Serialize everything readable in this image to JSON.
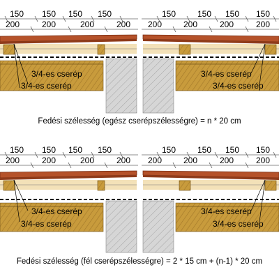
{
  "top_section": {
    "dims_row1_left": [
      "150",
      "150",
      "150",
      "150"
    ],
    "dims_row2_left": [
      "200",
      "200",
      "200",
      "200"
    ],
    "dims_row1_right": [
      "150",
      "150",
      "150",
      "150"
    ],
    "dims_row2_right": [
      "200",
      "200",
      "200",
      "200"
    ],
    "left_label_upper": "3/4-es cserép",
    "left_label_lower": "3/4-es cserép",
    "right_label_upper": "3/4-es cserép",
    "right_label_lower": "3/4-es cserép",
    "caption": "Fedési szélesség (egész cserépszélességre) = n * 20 cm"
  },
  "bottom_section": {
    "dims_row1_left": [
      "150",
      "150",
      "150",
      "150"
    ],
    "dims_row2_left": [
      "200",
      "200",
      "200",
      "200"
    ],
    "dims_row1_right": [
      "150",
      "150",
      "150",
      "150"
    ],
    "dims_row2_right": [
      "200",
      "200",
      "200",
      "200"
    ],
    "left_label_upper": "3/4-es cserép",
    "left_label_lower": "3/4-es cserép",
    "right_label_upper": "3/4-es cserép",
    "right_label_lower": "3/4-es cserép",
    "caption": "Fedési szélesség (fél cserépszélességre) = 2 * 15 cm + (n-1) * 20 cm"
  },
  "colors": {
    "tile": "#b5522a",
    "tile_dark": "#7a2e14",
    "batten": "#d8b46a",
    "timber": "#c89b3c",
    "timber_grain": "#8a6420",
    "board": "#f3e1b8",
    "wall": "#cfcfcf",
    "dim_line": "#555555"
  }
}
